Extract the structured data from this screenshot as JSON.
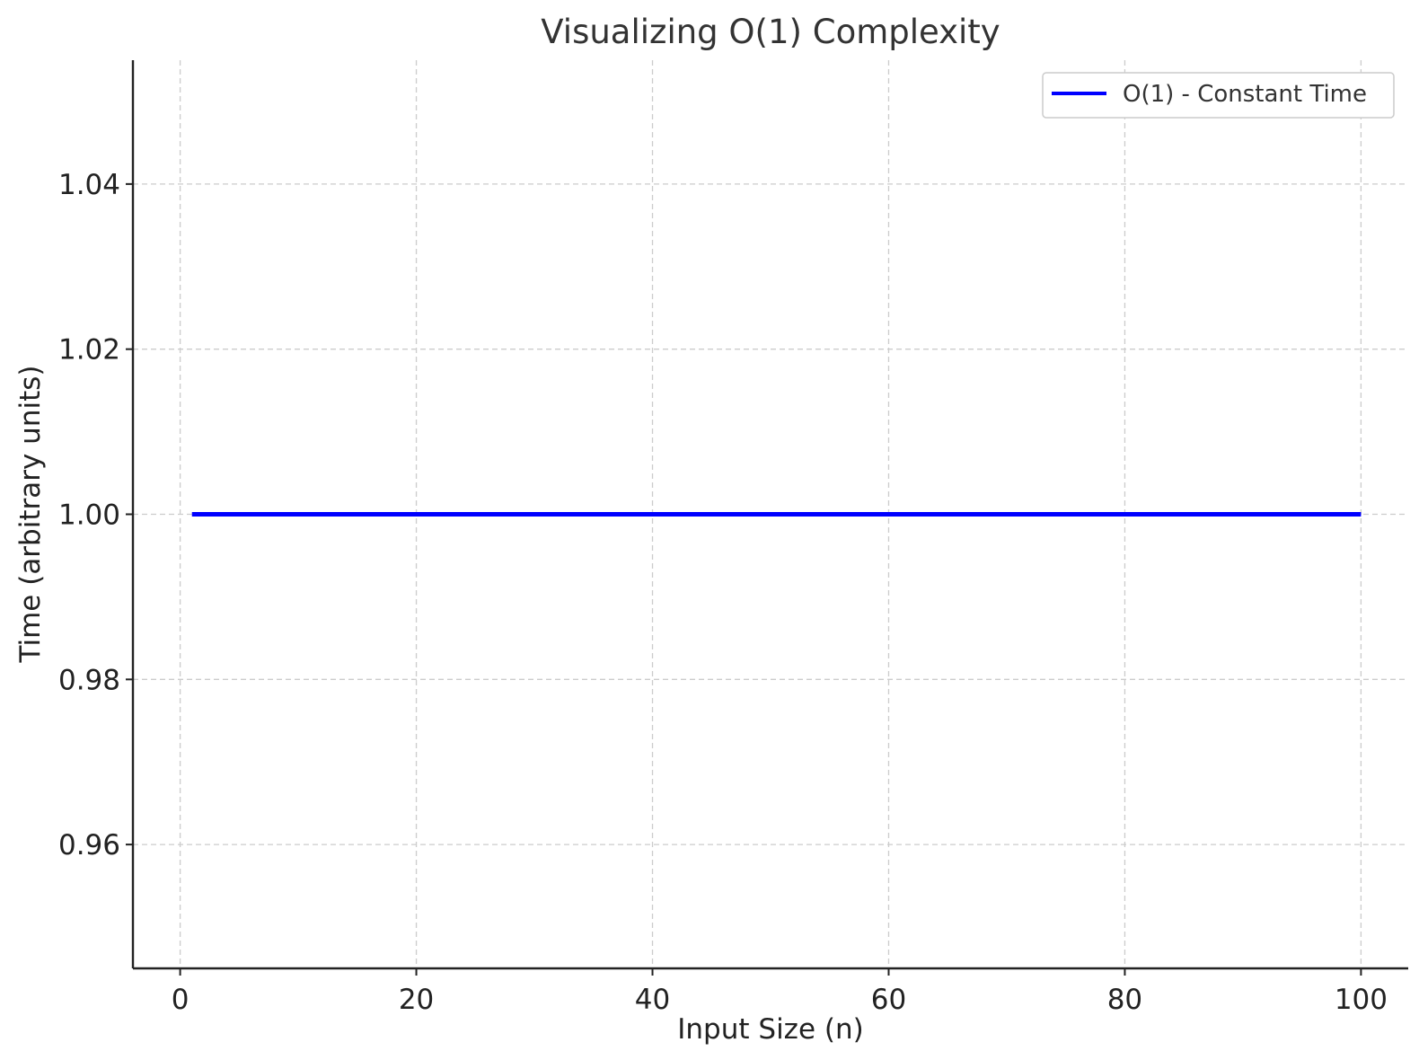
{
  "chart_data": {
    "type": "line",
    "title": "Visualizing O(1) Complexity",
    "xlabel": "Input Size (n)",
    "ylabel": "Time (arbitrary units)",
    "xlim": [
      -4,
      104
    ],
    "ylim": [
      0.945,
      1.055
    ],
    "xticks": [
      0,
      20,
      40,
      60,
      80,
      100
    ],
    "xtick_labels": [
      "0",
      "20",
      "40",
      "60",
      "80",
      "100"
    ],
    "yticks": [
      0.96,
      0.98,
      1.0,
      1.02,
      1.04
    ],
    "ytick_labels": [
      "0.96",
      "0.98",
      "1.00",
      "1.02",
      "1.04"
    ],
    "grid": true,
    "legend_position": "top-right",
    "series": [
      {
        "name": "O(1) - Constant Time",
        "color": "#0000ff",
        "x": [
          1,
          100
        ],
        "y": [
          1.0,
          1.0
        ]
      }
    ]
  }
}
